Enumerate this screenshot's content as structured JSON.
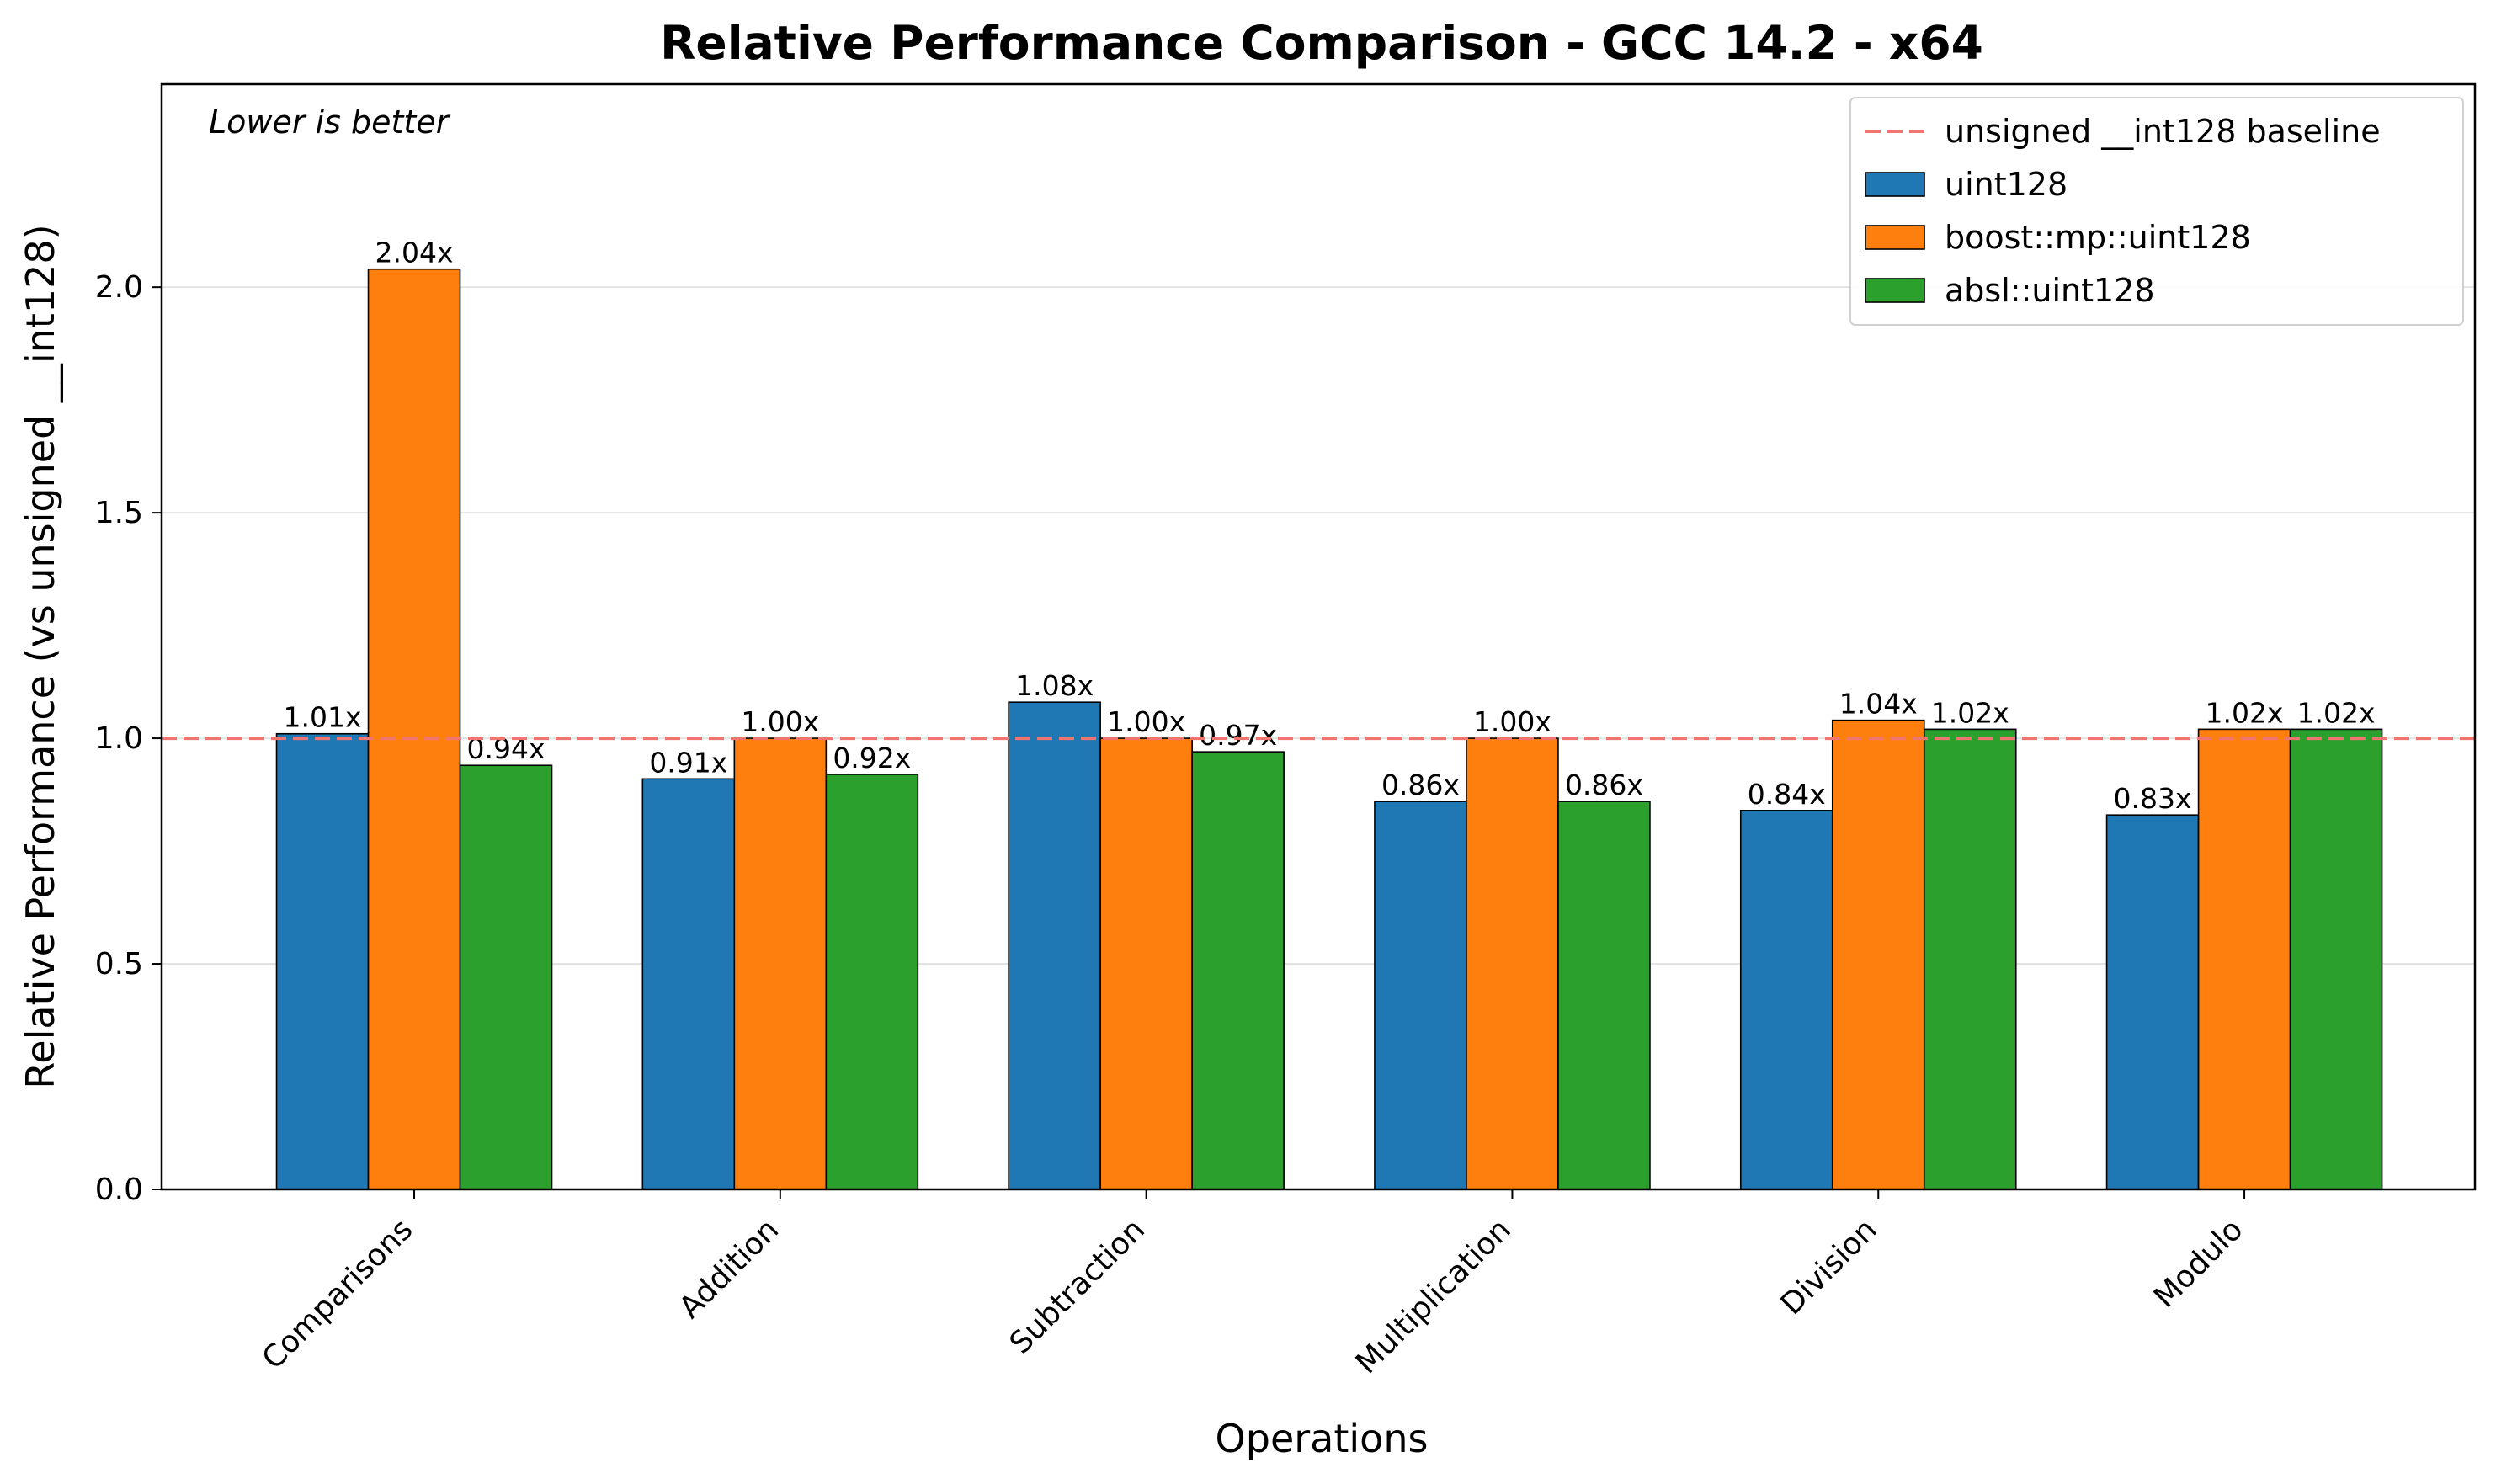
{
  "chart_data": {
    "type": "bar",
    "title": "Relative Performance Comparison - GCC 14.2 - x64",
    "xlabel": "Operations",
    "ylabel": "Relative Performance (vs unsigned __int128)",
    "ylim": [
      0,
      2.45
    ],
    "yticks": [
      0.0,
      0.5,
      1.0,
      1.5,
      2.0
    ],
    "ytick_labels": [
      "0.0",
      "0.5",
      "1.0",
      "1.5",
      "2.0"
    ],
    "grid": "horizontal",
    "legend_position": "top-right",
    "annotation": "Lower is better",
    "baseline": {
      "name": "unsigned __int128 baseline",
      "value": 1.0,
      "color": "#f07470",
      "style": "dashed"
    },
    "categories": [
      "Comparisons",
      "Addition",
      "Subtraction",
      "Multiplication",
      "Division",
      "Modulo"
    ],
    "series": [
      {
        "name": "uint128",
        "color": "#1f77b4",
        "values": [
          1.01,
          0.91,
          1.08,
          0.86,
          0.84,
          0.83
        ],
        "labels": [
          "1.01x",
          "0.91x",
          "1.08x",
          "0.86x",
          "0.84x",
          "0.83x"
        ]
      },
      {
        "name": "boost::mp::uint128",
        "color": "#ff7f0e",
        "values": [
          2.04,
          1.0,
          1.0,
          1.0,
          1.04,
          1.02
        ],
        "labels": [
          "2.04x",
          "1.00x",
          "1.00x",
          "1.00x",
          "1.04x",
          "1.02x"
        ]
      },
      {
        "name": "absl::uint128",
        "color": "#2ca02c",
        "values": [
          0.94,
          0.92,
          0.97,
          0.86,
          1.02,
          1.02
        ],
        "labels": [
          "0.94x",
          "0.92x",
          "0.97x",
          "0.86x",
          "1.02x",
          "1.02x"
        ]
      }
    ]
  }
}
